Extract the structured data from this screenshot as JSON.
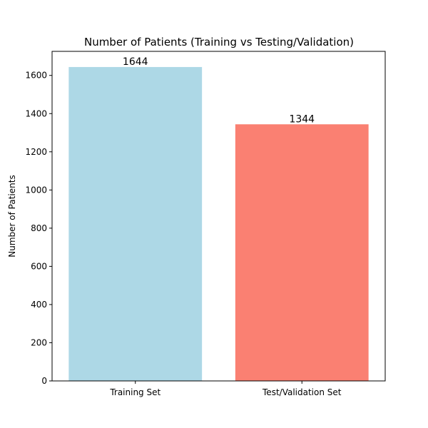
{
  "chart_data": {
    "type": "bar",
    "title": "Number of Patients (Training vs Testing/Validation)",
    "xlabel": "",
    "ylabel": "Number of Patients",
    "categories": [
      "Training Set",
      "Test/Validation Set"
    ],
    "values": [
      1644,
      1344
    ],
    "data_labels": [
      "1644",
      "1344"
    ],
    "colors": [
      "#add8e6",
      "#fa8072"
    ],
    "ylim": [
      0,
      1726
    ],
    "yticks": [
      0,
      200,
      400,
      600,
      800,
      1000,
      1200,
      1400,
      1600
    ],
    "ytick_labels": [
      "0",
      "200",
      "400",
      "600",
      "800",
      "1000",
      "1200",
      "1400",
      "1600"
    ],
    "grid": false,
    "legend": "none"
  }
}
